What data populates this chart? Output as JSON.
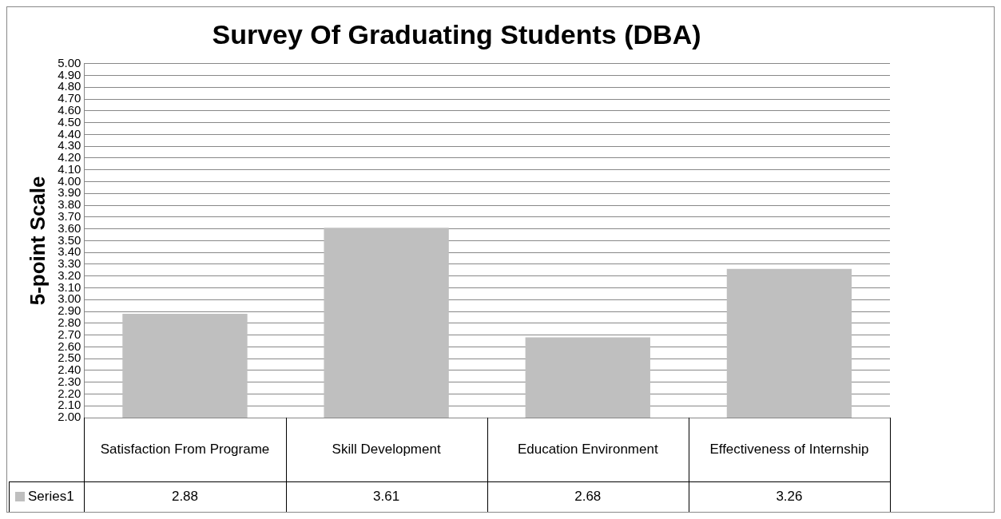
{
  "chart_data": {
    "type": "bar",
    "title": "Survey Of Graduating Students (DBA)",
    "ylabel": "5-point Scale",
    "categories": [
      "Satisfaction From Programe",
      "Skill Development",
      "Education Environment",
      "Effectiveness of Internship"
    ],
    "series": [
      {
        "name": "Series1",
        "color": "#bfbfbf",
        "values": [
          2.88,
          3.61,
          2.68,
          3.26
        ]
      }
    ],
    "ylim": [
      2,
      5
    ],
    "yticks": [
      {
        "value": 2,
        "label": "2.00"
      },
      {
        "value": 2.1,
        "label": "2.10"
      },
      {
        "value": 2.2,
        "label": "2.20"
      },
      {
        "value": 2.3,
        "label": "2.30"
      },
      {
        "value": 2.4,
        "label": "2.40"
      },
      {
        "value": 2.5,
        "label": "2.50"
      },
      {
        "value": 2.6,
        "label": "2.60"
      },
      {
        "value": 2.7,
        "label": "2.70"
      },
      {
        "value": 2.8,
        "label": "2.80"
      },
      {
        "value": 2.9,
        "label": "2.90"
      },
      {
        "value": 3,
        "label": "3.00"
      },
      {
        "value": 3.1,
        "label": "3.10"
      },
      {
        "value": 3.2,
        "label": "3.20"
      },
      {
        "value": 3.3,
        "label": "3.30"
      },
      {
        "value": 3.4,
        "label": "3.40"
      },
      {
        "value": 3.5,
        "label": "3.50"
      },
      {
        "value": 3.6,
        "label": "3.60"
      },
      {
        "value": 3.7,
        "label": "3.70"
      },
      {
        "value": 3.8,
        "label": "3.80"
      },
      {
        "value": 3.9,
        "label": "3.90"
      },
      {
        "value": 4,
        "label": "4.00"
      },
      {
        "value": 4.1,
        "label": "4.10"
      },
      {
        "value": 4.2,
        "label": "4.20"
      },
      {
        "value": 4.3,
        "label": "4.30"
      },
      {
        "value": 4.4,
        "label": "4.40"
      },
      {
        "value": 4.5,
        "label": "4.50"
      },
      {
        "value": 4.6,
        "label": "4.60"
      },
      {
        "value": 4.7,
        "label": "4.70"
      },
      {
        "value": 4.8,
        "label": "4.80"
      },
      {
        "value": 4.9,
        "label": "4.90"
      },
      {
        "value": 5,
        "label": "5.00"
      }
    ],
    "grid": "y",
    "data_labels": true
  }
}
